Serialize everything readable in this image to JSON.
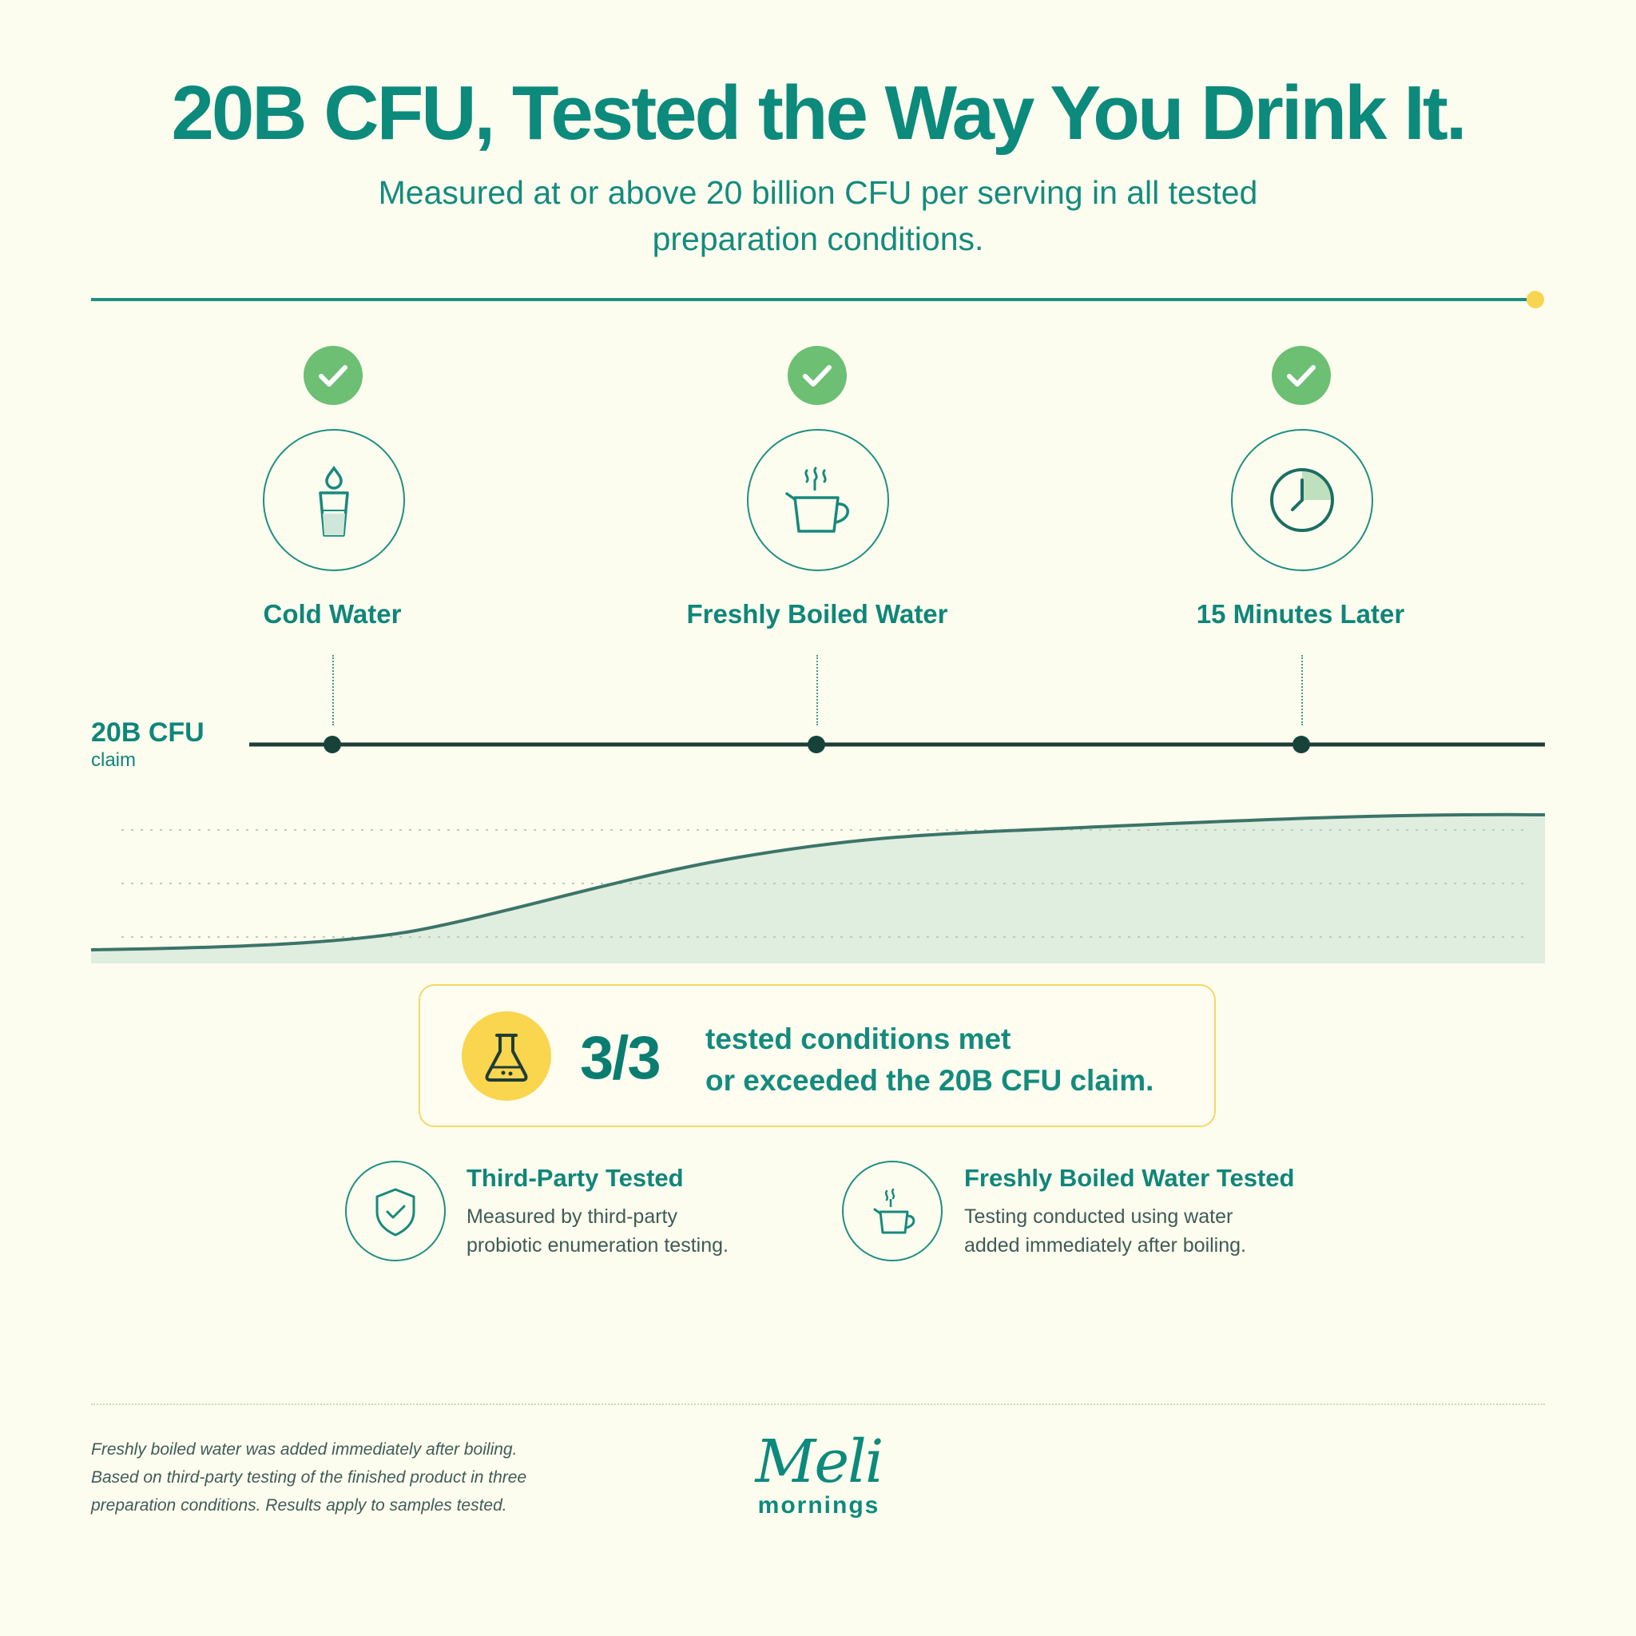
{
  "header": {
    "title": "20B CFU, Tested the Way You Drink It.",
    "subtitle_line1": "Measured at or above 20 billion CFU per serving in all tested",
    "subtitle_line2": "preparation conditions."
  },
  "conditions": [
    {
      "label": "Cold Water",
      "status": "passed",
      "icon": "glass-water-icon"
    },
    {
      "label": "Freshly Boiled Water",
      "status": "passed",
      "icon": "steaming-cup-icon"
    },
    {
      "label": "15 Minutes Later",
      "status": "passed",
      "icon": "clock-icon"
    }
  ],
  "claim": {
    "value": "20B CFU",
    "unit": "claim"
  },
  "summary": {
    "ratio": "3/3",
    "text_line1": "tested conditions met",
    "text_line2": "or exceeded the 20B CFU claim.",
    "icon": "flask-icon"
  },
  "features": [
    {
      "title": "Third-Party Tested",
      "desc_line1": "Measured by third-party",
      "desc_line2": "probiotic enumeration testing.",
      "icon": "shield-check-icon"
    },
    {
      "title": "Freshly Boiled Water Tested",
      "desc_line1": "Testing conducted using water",
      "desc_line2": "added immediately after boiling.",
      "icon": "steaming-cup-icon"
    }
  ],
  "footnote": {
    "line1": "Freshly boiled water was added immediately after boiling.",
    "line2": "Based on third-party testing of the finished product in three",
    "line3": "preparation conditions. Results apply to samples tested."
  },
  "logo": {
    "script": "Meli",
    "sub": "mornings"
  },
  "colors": {
    "background": "#FDFDEF",
    "primary_teal": "#0C8A7C",
    "check_green": "#6CBF73",
    "accent_yellow": "#FAD54E",
    "area_fill": "#DFEEDF",
    "claim_line": "#1F3D37"
  }
}
